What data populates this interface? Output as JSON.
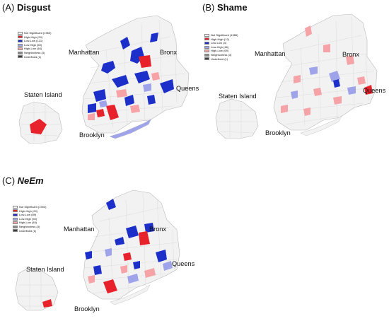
{
  "colors": {
    "not_significant": "#f2f2f2",
    "high_high": "#e8222a",
    "low_low": "#1d2fc9",
    "low_high": "#9fa3ea",
    "high_low": "#f5a3a6",
    "neighborless": "#8a8a8a",
    "undefined": "#3d3d3d",
    "boundary": "#b9b9b9"
  },
  "panels": [
    {
      "letter": "(A)",
      "title": "Disgust",
      "italic": false,
      "legend": [
        {
          "label": "Not Significant (1960)",
          "cls": "not_significant",
          "icon": "swatch-not-significant-icon"
        },
        {
          "label": "High-High (29)",
          "cls": "high_high",
          "icon": "swatch-high-high-icon"
        },
        {
          "label": "Low-Low (121)",
          "cls": "low_low",
          "icon": "swatch-low-low-icon"
        },
        {
          "label": "Low-High (60)",
          "cls": "low_high",
          "icon": "swatch-low-high-icon"
        },
        {
          "label": "High-Low (46)",
          "cls": "high_low",
          "icon": "swatch-high-low-icon"
        },
        {
          "label": "Neighborless (3)",
          "cls": "neighborless",
          "icon": "swatch-neighborless-icon"
        },
        {
          "label": "Undefined (1)",
          "cls": "undefined",
          "icon": "swatch-undefined-icon"
        }
      ],
      "boroughs": {
        "manhattan": "Manhattan",
        "bronx": "Bronx",
        "queens": "Queens",
        "staten_island": "Staten Island",
        "brooklyn": "Brooklyn"
      }
    },
    {
      "letter": "(B)",
      "title": "Shame",
      "italic": false,
      "legend": [
        {
          "label": "Not Significant (1986)",
          "cls": "not_significant",
          "icon": "swatch-not-significant-icon"
        },
        {
          "label": "High-High (12)",
          "cls": "high_high",
          "icon": "swatch-high-high-icon"
        },
        {
          "label": "Low-Low (3)",
          "cls": "low_low",
          "icon": "swatch-low-low-icon"
        },
        {
          "label": "Low-High (46)",
          "cls": "low_high",
          "icon": "swatch-low-high-icon"
        },
        {
          "label": "High-Low (69)",
          "cls": "high_low",
          "icon": "swatch-high-low-icon"
        },
        {
          "label": "Neighborless (3)",
          "cls": "neighborless",
          "icon": "swatch-neighborless-icon"
        },
        {
          "label": "Undefined (1)",
          "cls": "undefined",
          "icon": "swatch-undefined-icon"
        }
      ],
      "boroughs": {
        "manhattan": "Manhattan",
        "bronx": "Bronx",
        "queens": "Queens",
        "staten_island": "Staten Island",
        "brooklyn": "Brooklyn"
      }
    },
    {
      "letter": "(C)",
      "title": "NeEm",
      "italic": true,
      "legend": [
        {
          "label": "Not Significant (1904)",
          "cls": "not_significant",
          "icon": "swatch-not-significant-icon"
        },
        {
          "label": "High-High (24)",
          "cls": "high_high",
          "icon": "swatch-high-high-icon"
        },
        {
          "label": "Low-Low (89)",
          "cls": "low_low",
          "icon": "swatch-low-low-icon"
        },
        {
          "label": "Low-High (50)",
          "cls": "low_high",
          "icon": "swatch-low-high-icon"
        },
        {
          "label": "High-Low (46)",
          "cls": "high_low",
          "icon": "swatch-high-low-icon"
        },
        {
          "label": "Neighborless (3)",
          "cls": "neighborless",
          "icon": "swatch-neighborless-icon"
        },
        {
          "label": "Undefined (1)",
          "cls": "undefined",
          "icon": "swatch-undefined-icon"
        }
      ],
      "boroughs": {
        "manhattan": "Manhattan",
        "bronx": "Bronx",
        "queens": "Queens",
        "staten_island": "Staten Island",
        "brooklyn": "Brooklyn"
      }
    }
  ]
}
